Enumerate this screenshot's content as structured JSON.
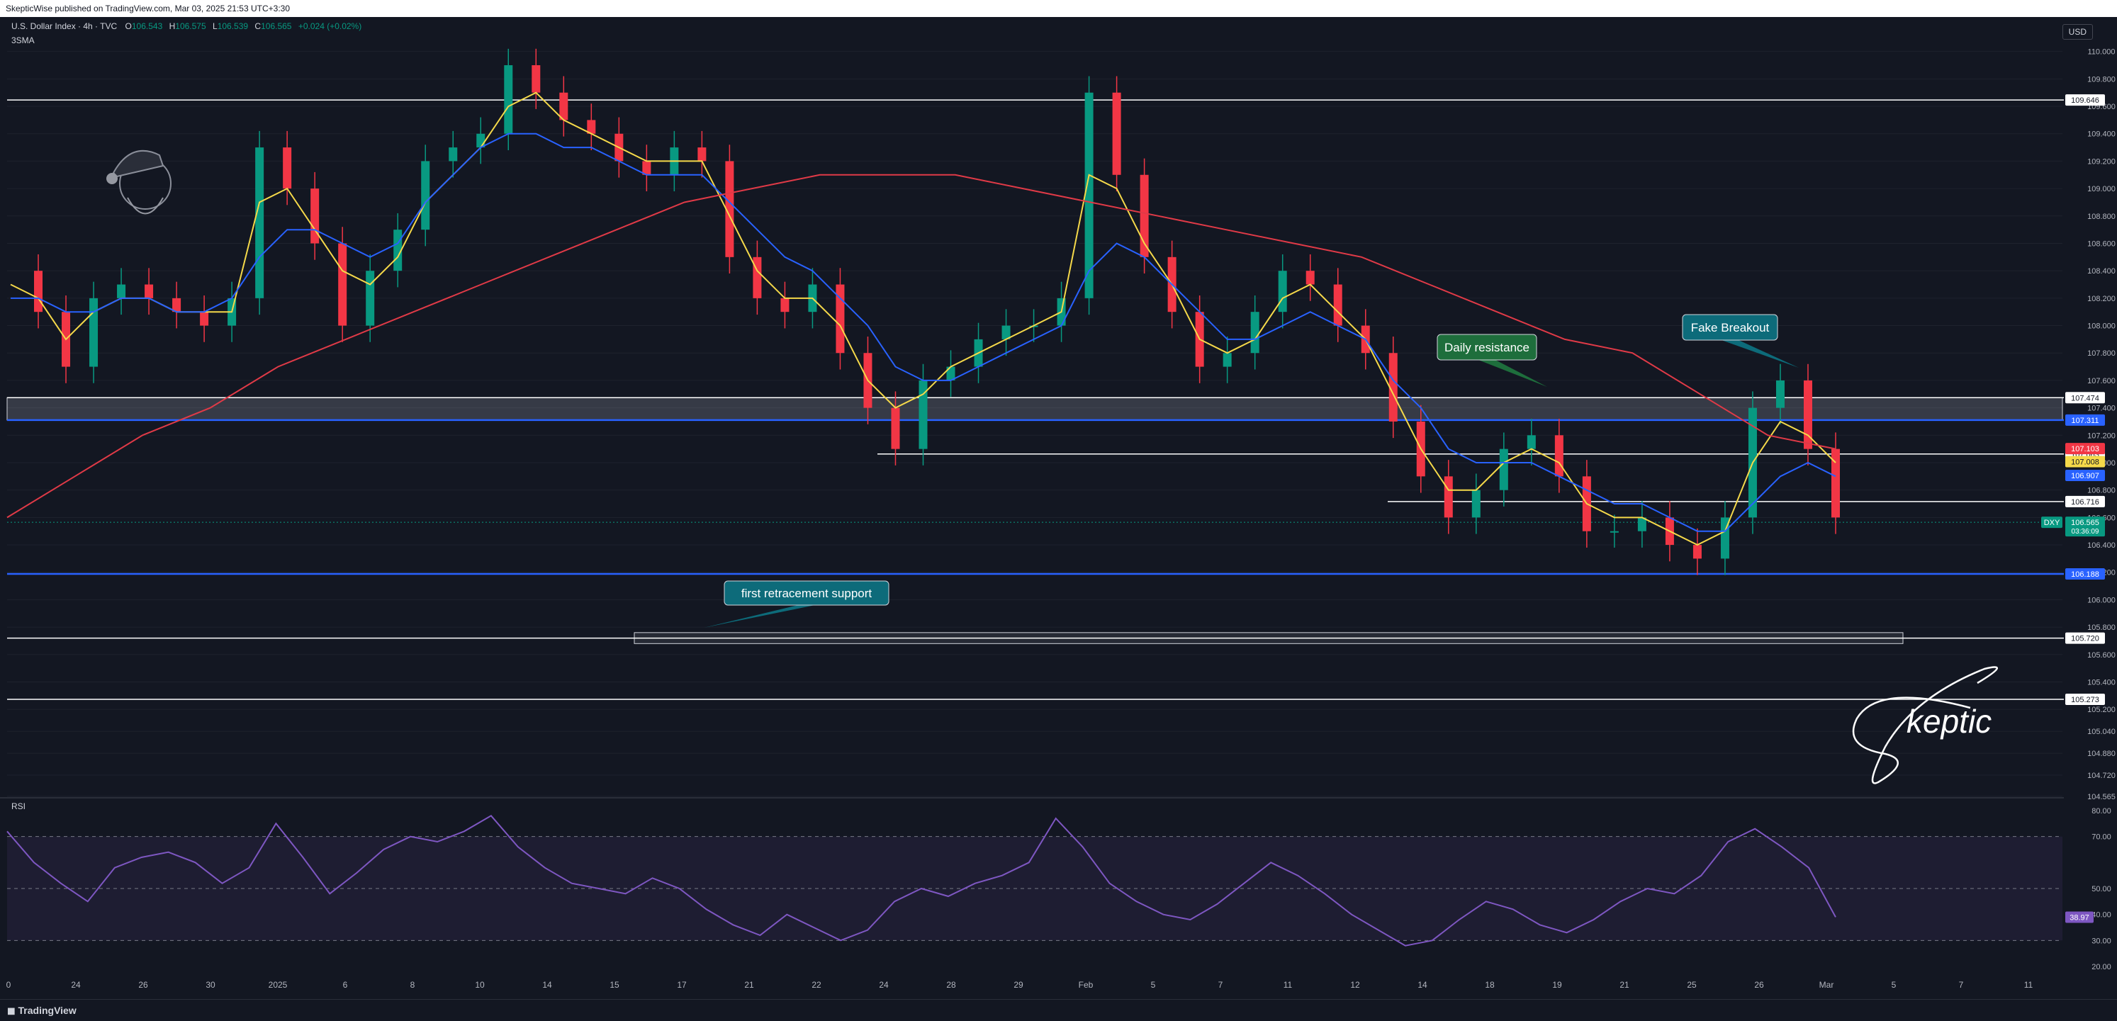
{
  "header": {
    "publish_text": "SkepticWise published on TradingView.com, Mar 03, 2025 21:53 UTC+3:30"
  },
  "legend": {
    "symbol": "U.S. Dollar Index · 4h · TVC",
    "o_label": "O",
    "o_value": "106.543",
    "h_label": "H",
    "h_value": "106.575",
    "l_label": "L",
    "l_value": "106.539",
    "c_label": "C",
    "c_value": "106.565",
    "change": "+0.024 (+0.02%)",
    "indicator": "3SMA"
  },
  "currency_button": "USD",
  "footer": {
    "brand": "TradingView"
  },
  "colors": {
    "background": "#131722",
    "grid": "#1e222d",
    "up": "#089981",
    "down": "#f23645",
    "sma_fast": "#f5d94a",
    "sma_mid": "#2962ff",
    "sma_slow": "#e03a47",
    "rsi": "#7e57c2"
  },
  "chart_data": [
    {
      "type": "line",
      "title": "U.S. Dollar Index · 4h · TVC",
      "ylim": [
        104.565,
        110.2
      ],
      "y_ticks": [
        "110.000",
        "109.800",
        "109.600",
        "109.400",
        "109.200",
        "109.000",
        "108.800",
        "108.600",
        "108.400",
        "108.200",
        "108.000",
        "107.800",
        "107.600",
        "107.400",
        "107.200",
        "107.000",
        "106.800",
        "106.600",
        "106.400",
        "106.200",
        "106.000",
        "105.800",
        "105.600",
        "105.400",
        "105.200",
        "105.040",
        "104.880",
        "104.720",
        "104.565"
      ],
      "x_ticks": [
        "0",
        "24",
        "26",
        "30",
        "2025",
        "6",
        "8",
        "10",
        "14",
        "15",
        "17",
        "21",
        "22",
        "24",
        "28",
        "29",
        "Feb",
        "5",
        "7",
        "11",
        "12",
        "14",
        "18",
        "19",
        "21",
        "25",
        "26",
        "Mar",
        "5",
        "7",
        "11"
      ],
      "horizontal_levels": [
        {
          "value": 109.646,
          "label": "109.646",
          "color": "#ffffff"
        },
        {
          "value": 107.474,
          "label": "107.474",
          "color": "#ffffff"
        },
        {
          "value": 107.311,
          "label": "107.311",
          "color": "#2962ff"
        },
        {
          "value": 107.063,
          "label": "107.063",
          "color": "#ffffff"
        },
        {
          "value": 106.716,
          "label": "106.716",
          "color": "#ffffff"
        },
        {
          "value": 106.188,
          "label": "106.188",
          "color": "#2962ff"
        },
        {
          "value": 105.72,
          "label": "105.720",
          "color": "#ffffff"
        },
        {
          "value": 105.273,
          "label": "105.273",
          "color": "#ffffff"
        }
      ],
      "price_badges": [
        {
          "value": 107.103,
          "label": "107.103",
          "color": "#f23645"
        },
        {
          "value": 107.008,
          "label": "107.008",
          "color": "#f5d94a"
        },
        {
          "value": 106.907,
          "label": "106.907",
          "color": "#2962ff"
        },
        {
          "value": 106.565,
          "label": "106.565",
          "sub": "03:36:09",
          "symbol": "DXY",
          "color": "#089981"
        }
      ],
      "zones": [
        {
          "from": 107.311,
          "to": 107.474,
          "label": ""
        },
        {
          "from": 105.68,
          "to": 105.76,
          "label": ""
        }
      ],
      "annotations": [
        {
          "text": "Daily resistance",
          "color": "#1e6e3c"
        },
        {
          "text": "Fake Breakout",
          "color": "#0d6b7a"
        },
        {
          "text": "first retracement support",
          "color": "#0d6b7a"
        }
      ],
      "series": [
        {
          "name": "",
          "values": [
            108.4,
            108.1,
            107.7,
            108.2,
            108.3,
            108.2,
            108.1,
            108.0,
            108.2,
            109.3,
            109.0,
            108.6,
            108.0,
            108.4,
            108.7,
            109.2,
            109.3,
            109.4,
            109.9,
            109.7,
            109.5,
            109.4,
            109.2,
            109.1,
            109.3,
            109.2,
            108.5,
            108.2,
            108.1,
            108.3,
            107.8,
            107.4,
            107.1,
            107.6,
            107.7,
            107.9,
            108.0,
            108.0,
            108.2,
            109.7,
            109.1,
            108.5,
            108.1,
            107.7,
            107.8,
            108.1,
            108.4,
            108.3,
            108.0,
            107.8,
            107.3,
            106.9,
            106.6,
            106.8,
            107.1,
            107.2,
            106.9,
            106.5,
            106.5,
            106.6,
            106.4,
            106.3,
            106.6,
            107.4,
            107.6,
            107.1,
            106.6
          ]
        },
        {
          "name": "",
          "values": [
            108.3,
            108.2,
            107.9,
            108.1,
            108.2,
            108.2,
            108.1,
            108.1,
            108.1,
            108.9,
            109.0,
            108.7,
            108.4,
            108.3,
            108.5,
            108.9,
            109.1,
            109.3,
            109.6,
            109.7,
            109.5,
            109.4,
            109.3,
            109.2,
            109.2,
            109.2,
            108.8,
            108.4,
            108.2,
            108.2,
            108.0,
            107.6,
            107.4,
            107.5,
            107.7,
            107.8,
            107.9,
            108.0,
            108.1,
            109.1,
            109.0,
            108.6,
            108.3,
            107.9,
            107.8,
            107.9,
            108.2,
            108.3,
            108.1,
            107.9,
            107.5,
            107.1,
            106.8,
            106.8,
            107.0,
            107.1,
            107.0,
            106.7,
            106.6,
            106.6,
            106.5,
            106.4,
            106.5,
            107.0,
            107.3,
            107.2,
            107.0
          ]
        },
        {
          "name": "",
          "values": [
            108.2,
            108.2,
            108.1,
            108.1,
            108.2,
            108.2,
            108.1,
            108.1,
            108.2,
            108.5,
            108.7,
            108.7,
            108.6,
            108.5,
            108.6,
            108.9,
            109.1,
            109.3,
            109.4,
            109.4,
            109.3,
            109.3,
            109.2,
            109.1,
            109.1,
            109.1,
            108.9,
            108.7,
            108.5,
            108.4,
            108.2,
            108.0,
            107.7,
            107.6,
            107.6,
            107.7,
            107.8,
            107.9,
            108.0,
            108.4,
            108.6,
            108.5,
            108.3,
            108.1,
            107.9,
            107.9,
            108.0,
            108.1,
            108.0,
            107.9,
            107.6,
            107.4,
            107.1,
            107.0,
            107.0,
            107.0,
            106.9,
            106.8,
            106.7,
            106.7,
            106.6,
            106.5,
            106.5,
            106.7,
            106.9,
            107.0,
            106.9
          ]
        },
        {
          "name": "",
          "values": [
            106.6,
            106.9,
            107.2,
            107.4,
            107.7,
            107.9,
            108.1,
            108.3,
            108.5,
            108.7,
            108.9,
            109.0,
            109.1,
            109.1,
            109.1,
            109.0,
            108.9,
            108.8,
            108.7,
            108.6,
            108.5,
            108.3,
            108.1,
            107.9,
            107.8,
            107.5,
            107.2,
            107.1
          ]
        }
      ]
    },
    {
      "type": "line",
      "title": "RSI",
      "ylim": [
        20,
        80
      ],
      "y_ticks": [
        "80.00",
        "70.00",
        "50.00",
        "40.00",
        "30.00",
        "20.00"
      ],
      "band": [
        30,
        70
      ],
      "current_label": "38.97",
      "series": [
        {
          "name": "",
          "values": [
            72,
            60,
            52,
            45,
            58,
            62,
            64,
            60,
            52,
            58,
            75,
            62,
            48,
            56,
            65,
            70,
            68,
            72,
            78,
            66,
            58,
            52,
            50,
            48,
            54,
            50,
            42,
            36,
            32,
            40,
            35,
            30,
            34,
            45,
            50,
            47,
            52,
            55,
            60,
            77,
            66,
            52,
            45,
            40,
            38,
            44,
            52,
            60,
            55,
            48,
            40,
            34,
            28,
            30,
            38,
            45,
            42,
            36,
            33,
            38,
            45,
            50,
            48,
            55,
            68,
            73,
            66,
            58,
            38.97
          ]
        }
      ]
    }
  ]
}
